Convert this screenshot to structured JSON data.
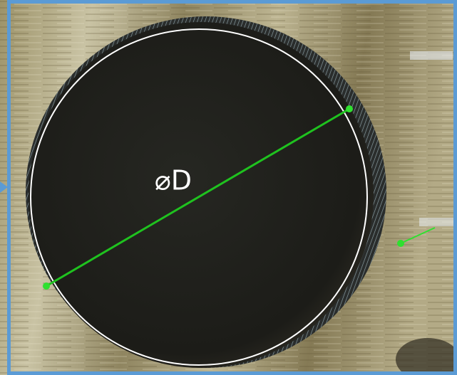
{
  "annotation": {
    "label": "⌀D"
  }
}
